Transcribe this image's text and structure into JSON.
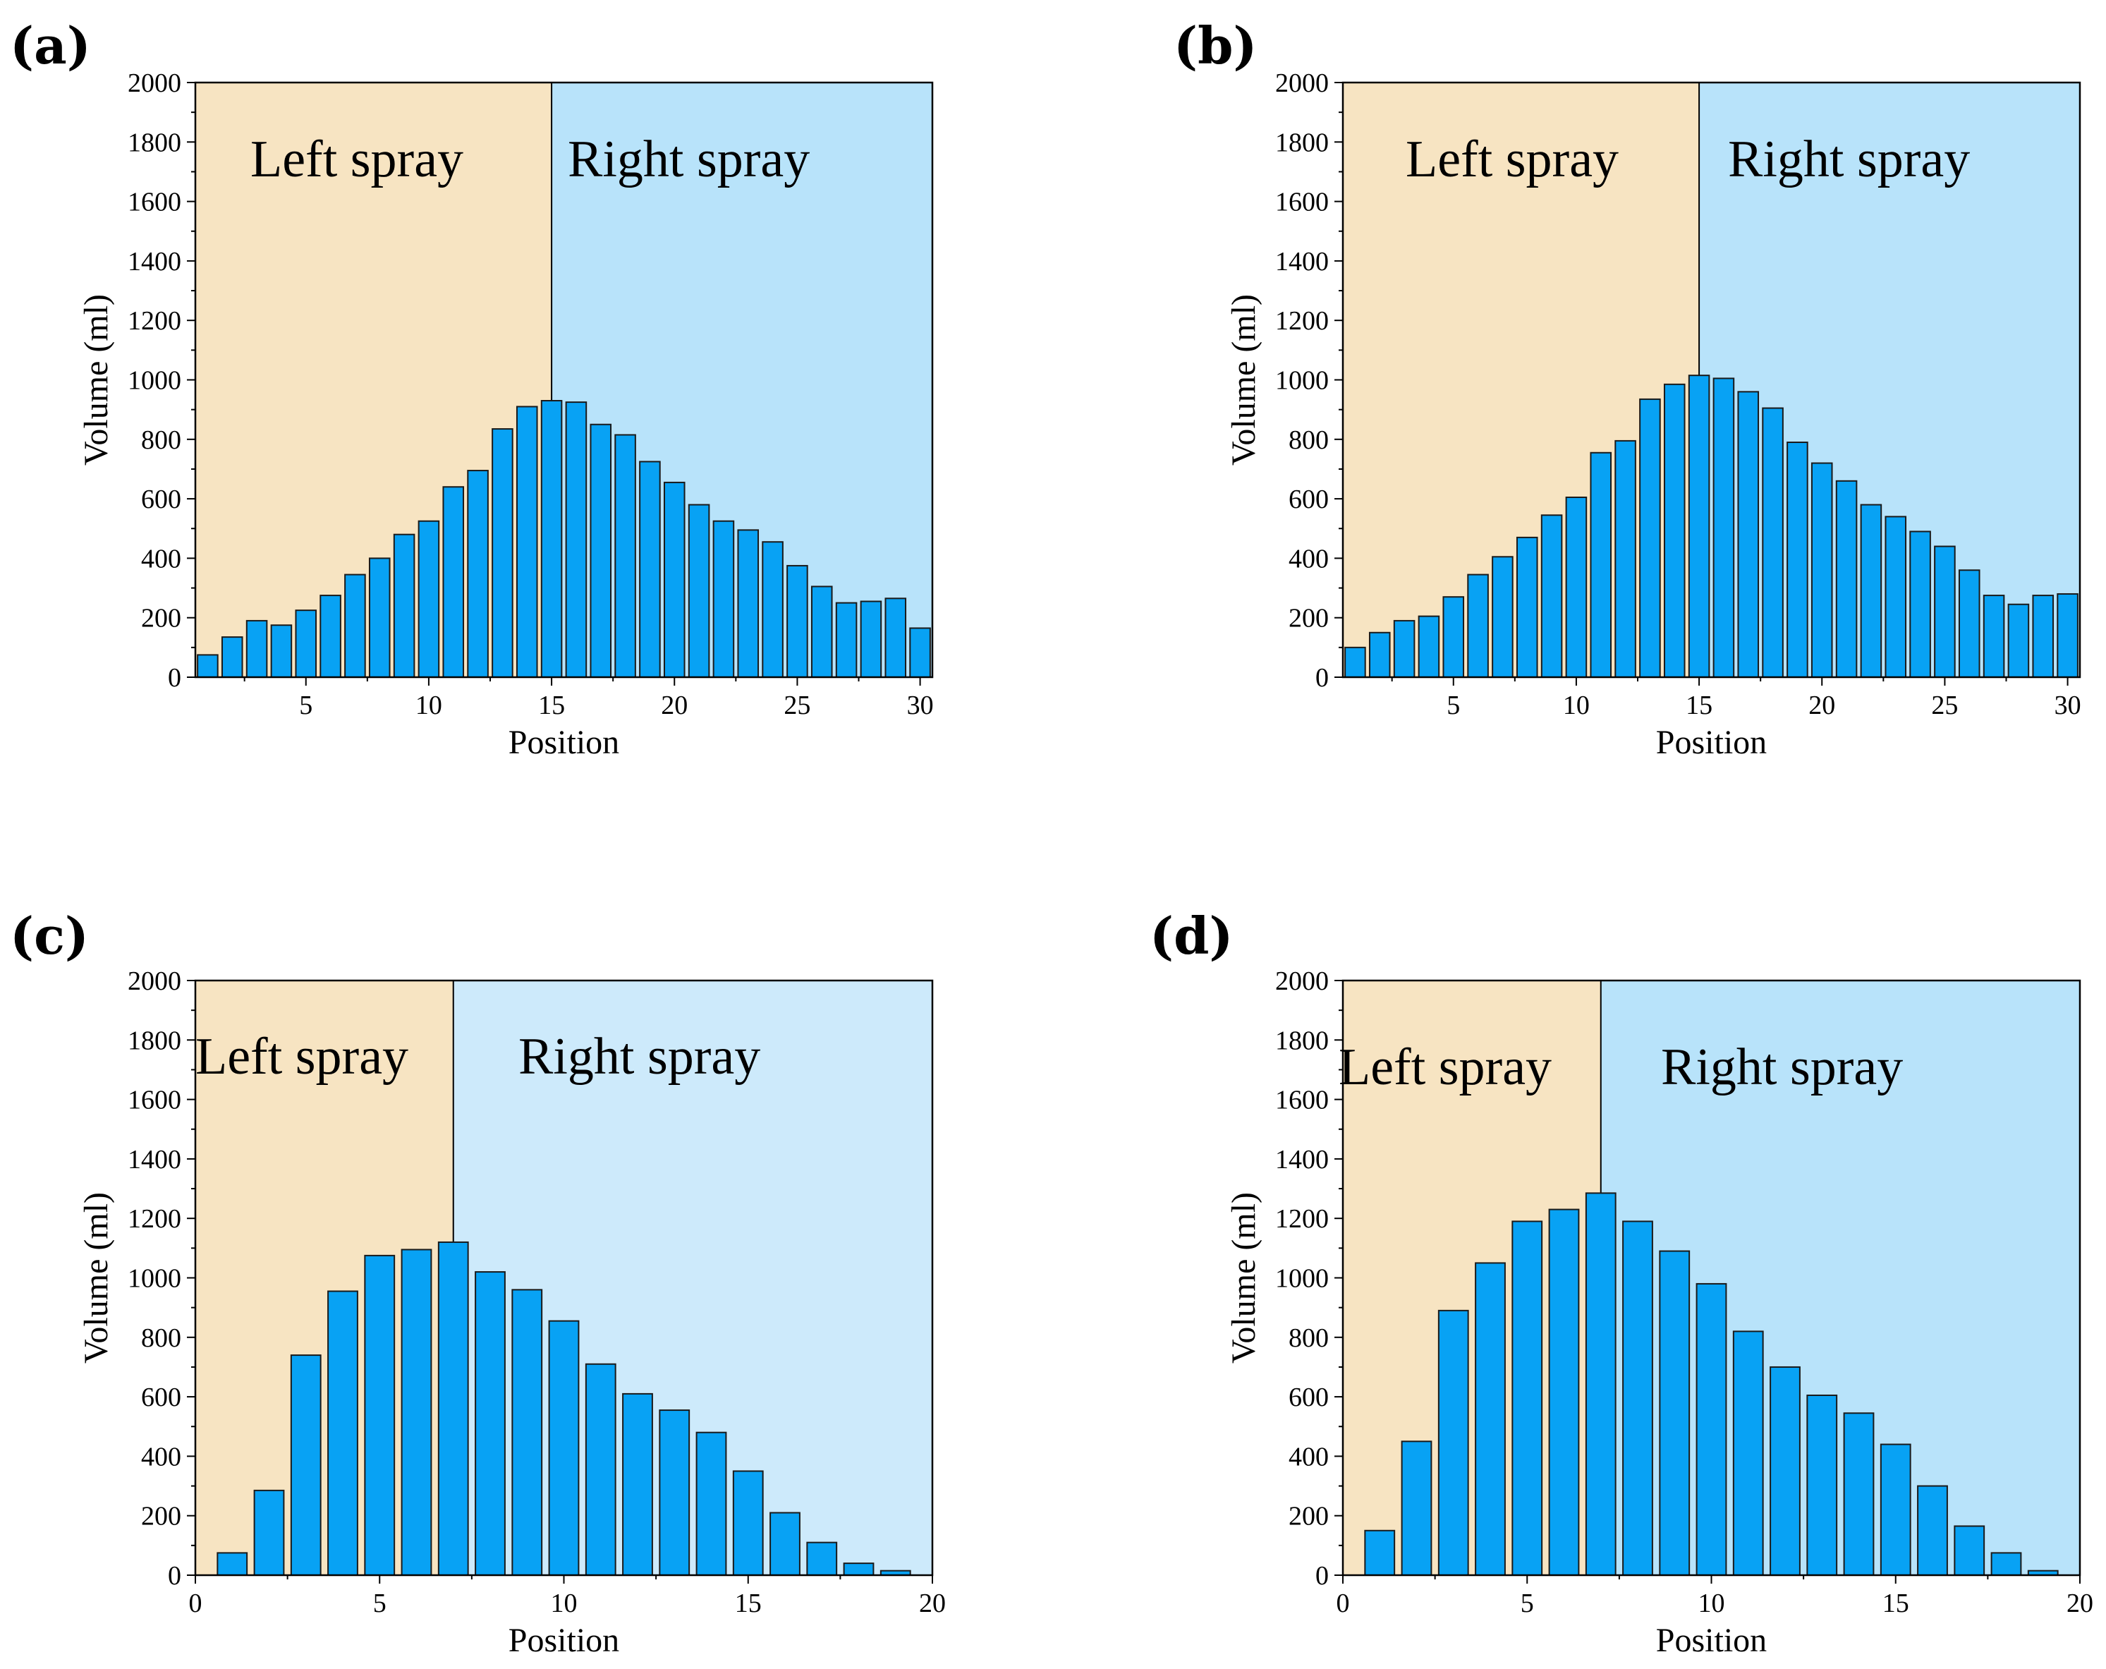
{
  "colors": {
    "left_region": "#f7e4c2",
    "right_region_ab": "#b8e3fa",
    "right_region_c": "#cdeafb",
    "right_region_d": "#b8e3fa",
    "bar_fill": "#08a2f4",
    "bar_stroke": "#1a1a1a",
    "axis": "#000000"
  },
  "chart_data": [
    {
      "panel": "(a)",
      "type": "bar",
      "xlabel": "Position",
      "ylabel": "Volume (ml)",
      "xlim": [
        0.5,
        30.5
      ],
      "ylim": [
        0,
        2000
      ],
      "xticks": [
        5,
        10,
        15,
        20,
        25,
        30
      ],
      "yticks": [
        0,
        200,
        400,
        600,
        800,
        1000,
        1200,
        1400,
        1600,
        1800,
        2000
      ],
      "split_at": 15,
      "left_label": "Left spray",
      "right_label": "Right spray",
      "x": [
        1,
        2,
        3,
        4,
        5,
        6,
        7,
        8,
        9,
        10,
        11,
        12,
        13,
        14,
        15,
        16,
        17,
        18,
        19,
        20,
        21,
        22,
        23,
        24,
        25,
        26,
        27,
        28,
        29,
        30
      ],
      "values": [
        75,
        135,
        190,
        175,
        225,
        275,
        345,
        400,
        480,
        525,
        640,
        695,
        835,
        910,
        930,
        925,
        850,
        815,
        725,
        655,
        580,
        525,
        495,
        455,
        375,
        305,
        250,
        255,
        265,
        165
      ]
    },
    {
      "panel": "(b)",
      "type": "bar",
      "xlabel": "Position",
      "ylabel": "Volume (ml)",
      "xlim": [
        0.5,
        30.5
      ],
      "ylim": [
        0,
        2000
      ],
      "xticks": [
        5,
        10,
        15,
        20,
        25,
        30
      ],
      "yticks": [
        0,
        200,
        400,
        600,
        800,
        1000,
        1200,
        1400,
        1600,
        1800,
        2000
      ],
      "split_at": 15,
      "left_label": "Left spray",
      "right_label": "Right spray",
      "x": [
        1,
        2,
        3,
        4,
        5,
        6,
        7,
        8,
        9,
        10,
        11,
        12,
        13,
        14,
        15,
        16,
        17,
        18,
        19,
        20,
        21,
        22,
        23,
        24,
        25,
        26,
        27,
        28,
        29,
        30
      ],
      "values": [
        100,
        150,
        190,
        205,
        270,
        345,
        405,
        470,
        545,
        605,
        755,
        795,
        935,
        985,
        1015,
        1005,
        960,
        905,
        790,
        720,
        660,
        580,
        540,
        490,
        440,
        360,
        275,
        245,
        275,
        280
      ]
    },
    {
      "panel": "(c)",
      "type": "bar",
      "xlabel": "Position",
      "ylabel": "Volume (ml)",
      "xlim": [
        0,
        20
      ],
      "ylim": [
        0,
        2000
      ],
      "xticks": [
        0,
        5,
        10,
        15,
        20
      ],
      "yticks": [
        0,
        200,
        400,
        600,
        800,
        1000,
        1200,
        1400,
        1600,
        1800,
        2000
      ],
      "split_at": 7,
      "left_label": "Left spray",
      "right_label": "Right spray",
      "x": [
        1,
        2,
        3,
        4,
        5,
        6,
        7,
        8,
        9,
        10,
        11,
        12,
        13,
        14,
        15,
        16,
        17,
        18,
        19
      ],
      "values": [
        75,
        285,
        740,
        955,
        1075,
        1095,
        1120,
        1020,
        960,
        855,
        710,
        610,
        555,
        480,
        350,
        210,
        110,
        40,
        15
      ]
    },
    {
      "panel": "(d)",
      "type": "bar",
      "xlabel": "Position",
      "ylabel": "Volume (ml)",
      "xlim": [
        0,
        20
      ],
      "ylim": [
        0,
        2000
      ],
      "xticks": [
        0,
        5,
        10,
        15,
        20
      ],
      "yticks": [
        0,
        200,
        400,
        600,
        800,
        1000,
        1200,
        1400,
        1600,
        1800,
        2000
      ],
      "split_at": 7,
      "left_label": "Left spray",
      "right_label": "Right spray",
      "x": [
        1,
        2,
        3,
        4,
        5,
        6,
        7,
        8,
        9,
        10,
        11,
        12,
        13,
        14,
        15,
        16,
        17,
        18,
        19
      ],
      "values": [
        150,
        450,
        890,
        1050,
        1190,
        1230,
        1285,
        1190,
        1090,
        980,
        820,
        700,
        605,
        545,
        440,
        300,
        165,
        75,
        15
      ]
    }
  ]
}
